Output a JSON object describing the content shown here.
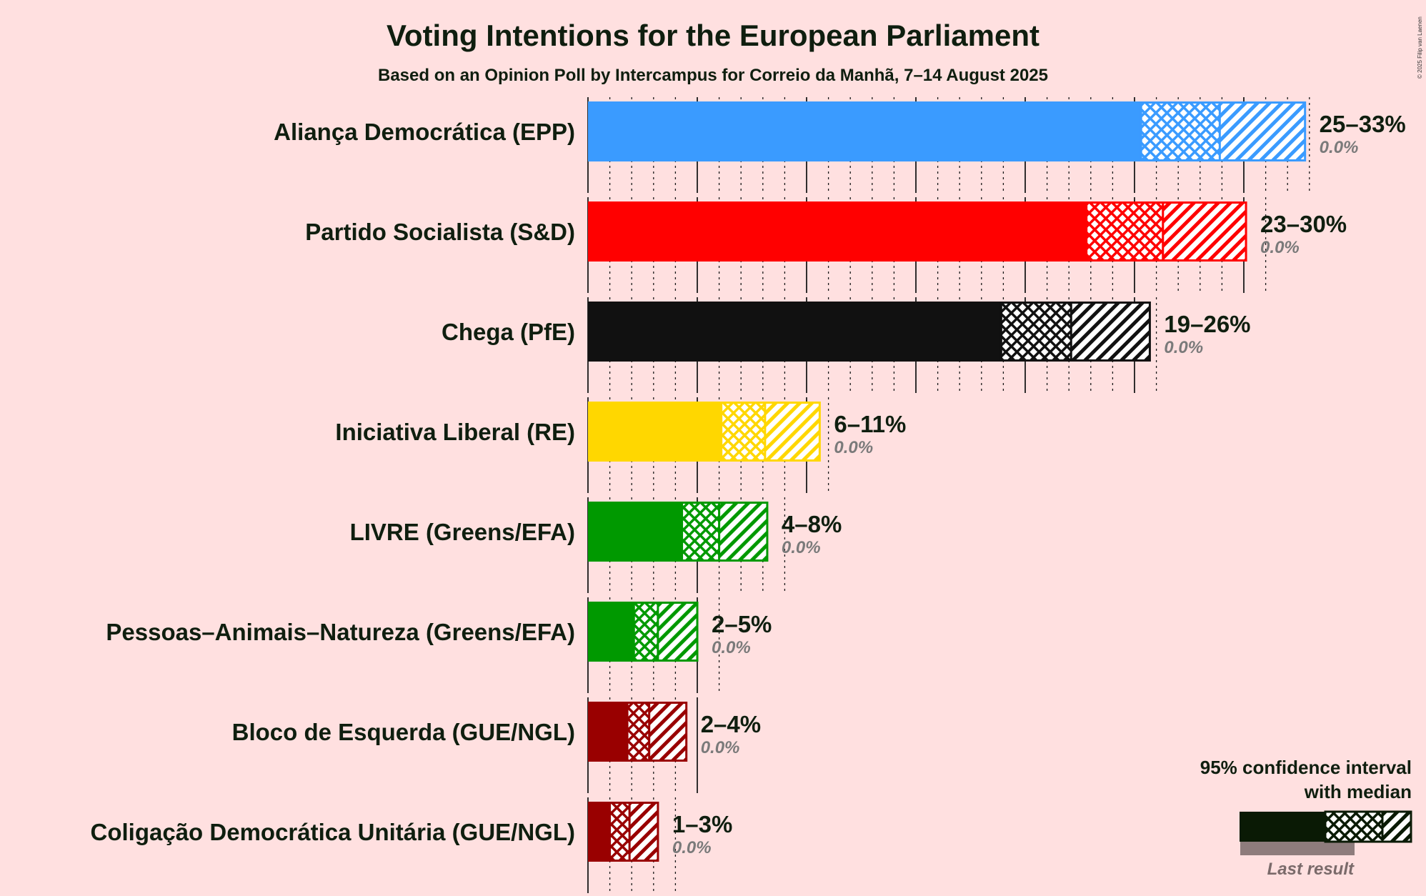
{
  "title": "Voting Intentions for the European Parliament",
  "subtitle": "Based on an Opinion Poll by Intercampus for Correio da Manhã, 7–14 August 2025",
  "copyright": "© 2025 Filip van Laenen",
  "legend": {
    "line1": "95% confidence interval",
    "line2": "with median",
    "last_result": "Last result"
  },
  "chart_data": {
    "type": "bar",
    "orientation": "horizontal",
    "unit": "%",
    "xlim": [
      0,
      33
    ],
    "grid": true,
    "legend_position": "bottom-right",
    "series": [
      {
        "name": "Aliança Democrática (EPP)",
        "color": "#3a9bff",
        "ci_low": 25.3,
        "median": 28.9,
        "ci_high": 32.8,
        "range_label": "25–33%",
        "last_result": "0.0%"
      },
      {
        "name": "Partido Socialista (S&D)",
        "color": "#ff0000",
        "ci_low": 22.8,
        "median": 26.3,
        "ci_high": 30.1,
        "range_label": "23–30%",
        "last_result": "0.0%"
      },
      {
        "name": "Chega (PfE)",
        "color": "#111111",
        "ci_low": 18.9,
        "median": 22.1,
        "ci_high": 25.7,
        "range_label": "19–26%",
        "last_result": "0.0%"
      },
      {
        "name": "Iniciativa Liberal (RE)",
        "color": "#ffd700",
        "ci_low": 6.1,
        "median": 8.1,
        "ci_high": 10.6,
        "range_label": "6–11%",
        "last_result": "0.0%"
      },
      {
        "name": "LIVRE (Greens/EFA)",
        "color": "#009900",
        "ci_low": 4.3,
        "median": 6.0,
        "ci_high": 8.2,
        "range_label": "4–8%",
        "last_result": "0.0%"
      },
      {
        "name": "Pessoas–Animais–Natureza (Greens/EFA)",
        "color": "#009900",
        "ci_low": 2.1,
        "median": 3.2,
        "ci_high": 5.0,
        "range_label": "2–5%",
        "last_result": "0.0%"
      },
      {
        "name": "Bloco de Esquerda (GUE/NGL)",
        "color": "#990000",
        "ci_low": 1.8,
        "median": 2.8,
        "ci_high": 4.5,
        "range_label": "2–4%",
        "last_result": "0.0%"
      },
      {
        "name": "Coligação Democrática Unitária (GUE/NGL)",
        "color": "#990000",
        "ci_low": 1.0,
        "median": 1.9,
        "ci_high": 3.2,
        "range_label": "1–3%",
        "last_result": "0.0%"
      }
    ]
  }
}
